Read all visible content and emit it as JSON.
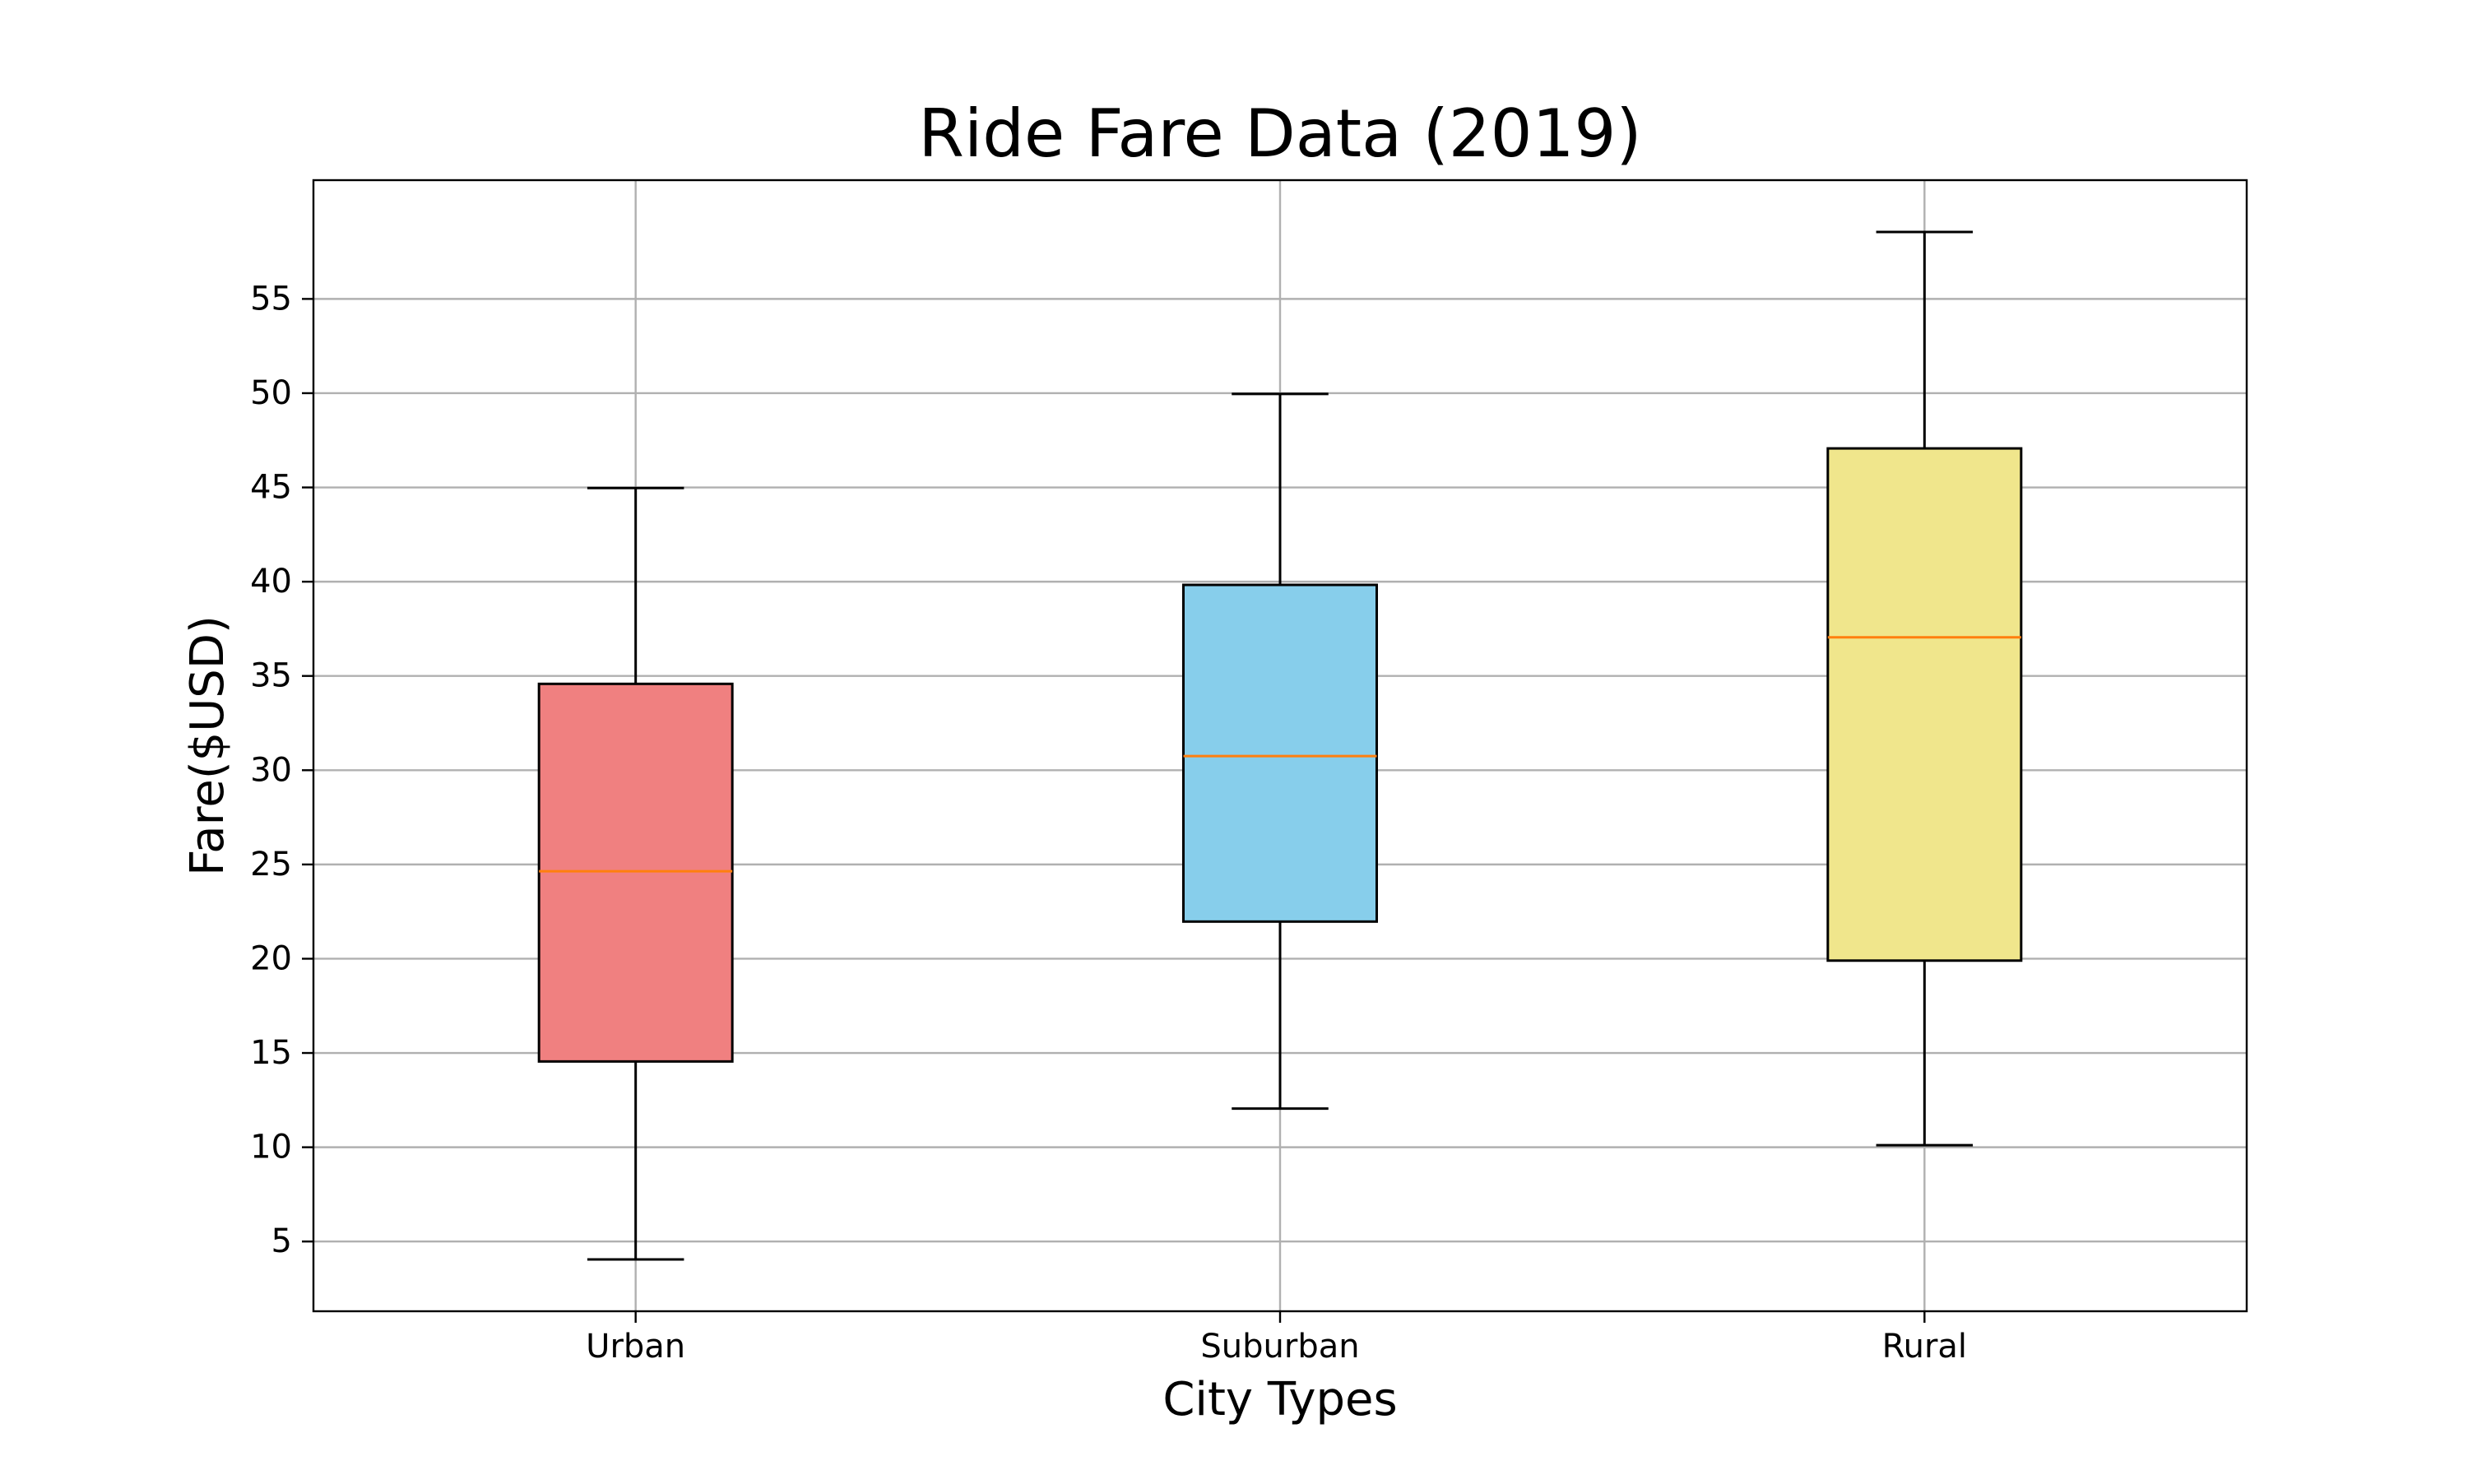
{
  "chart_data": {
    "type": "box",
    "title": "Ride Fare Data (2019)",
    "xlabel": "City Types",
    "ylabel": "Fare($USD)",
    "categories": [
      "Urban",
      "Suburban",
      "Rural"
    ],
    "boxes": [
      {
        "name": "Urban",
        "whisker_low": 4.05,
        "q1": 14.55,
        "median": 24.64,
        "q3": 34.58,
        "whisker_high": 44.97,
        "color": "#f08080"
      },
      {
        "name": "Suburban",
        "whisker_low": 12.05,
        "q1": 21.97,
        "median": 30.75,
        "q3": 39.83,
        "whisker_high": 49.96,
        "color": "#87ceeb"
      },
      {
        "name": "Rural",
        "whisker_low": 10.11,
        "q1": 19.9,
        "median": 37.05,
        "q3": 47.07,
        "whisker_high": 58.55,
        "color": "#f0e68c"
      }
    ],
    "median_color": "#ff7f0e",
    "ylim": [
      1.3,
      61.3
    ],
    "yticks": [
      5,
      10,
      15,
      20,
      25,
      30,
      35,
      40,
      45,
      50,
      55
    ],
    "ytick_labels": [
      "5",
      "10",
      "15",
      "20",
      "25",
      "30",
      "35",
      "40",
      "45",
      "50",
      "55"
    ],
    "grid": true,
    "grid_color": "#b0b0b0"
  }
}
